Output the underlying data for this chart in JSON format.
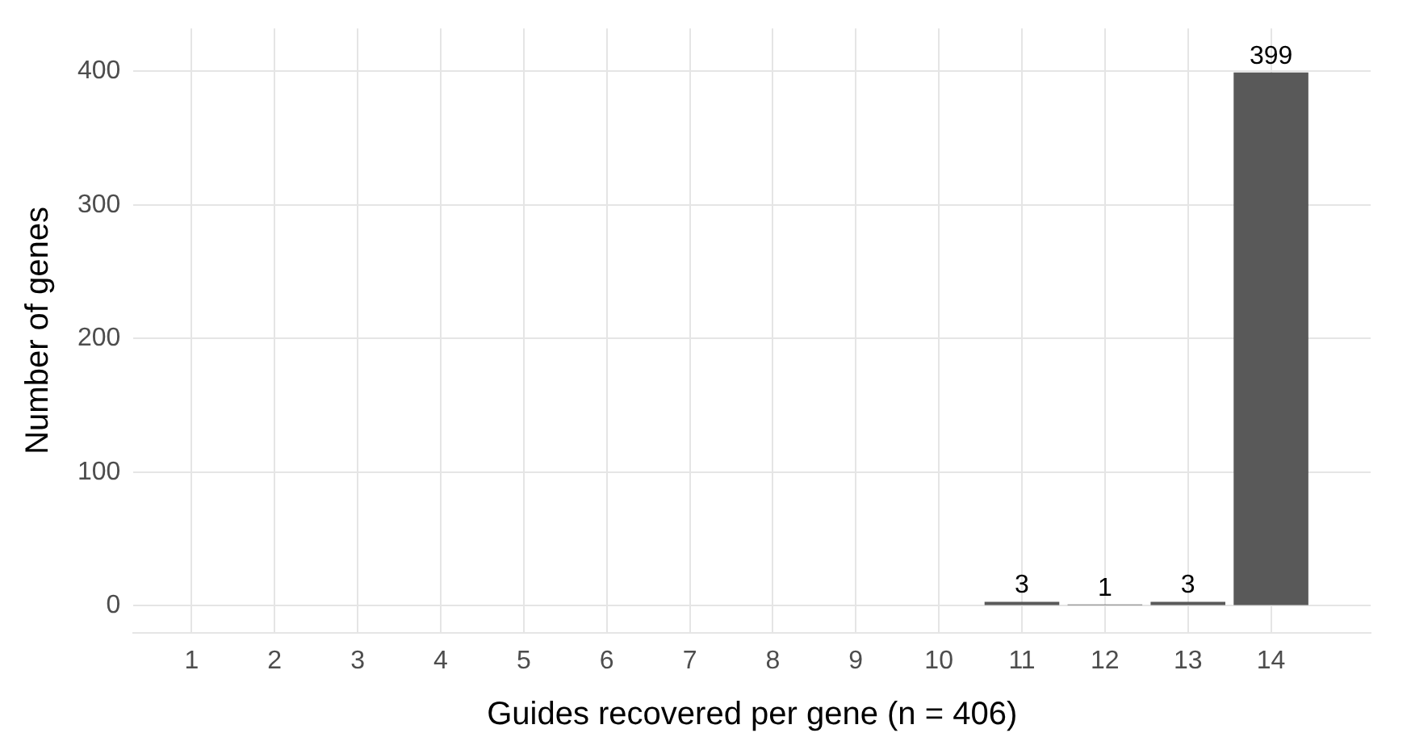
{
  "chart_data": {
    "type": "bar",
    "xlabel": "Guides recovered per gene (n = 406)",
    "ylabel": "Number of genes",
    "x": [
      11,
      12,
      13,
      14
    ],
    "values": [
      3,
      1,
      3,
      399
    ],
    "color": "#595959",
    "xlim": [
      0.3,
      15.2
    ],
    "xticks": [
      1,
      2,
      3,
      4,
      5,
      6,
      7,
      8,
      9,
      10,
      11,
      12,
      13,
      14
    ],
    "ylim": [
      -20,
      432
    ],
    "yticks": [
      0,
      100,
      200,
      300,
      400
    ],
    "grid": true,
    "data_labels": true,
    "legend": false
  }
}
